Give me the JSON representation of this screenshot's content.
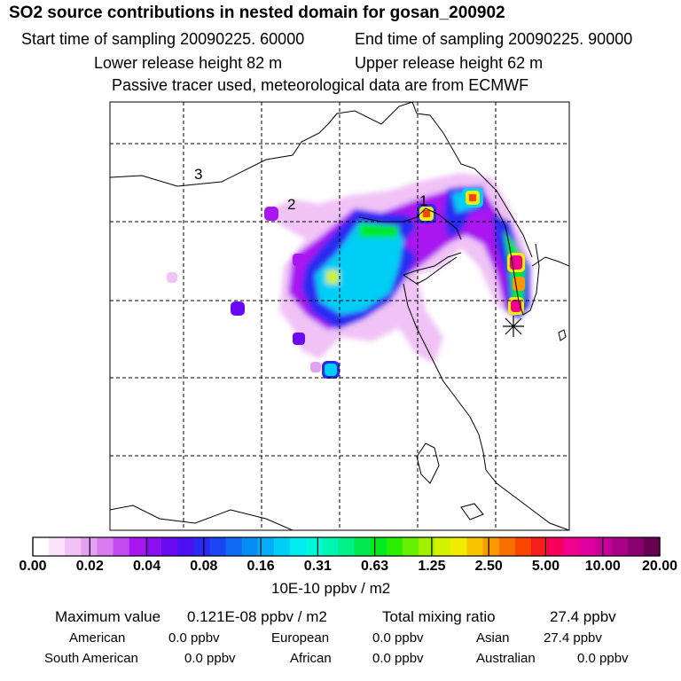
{
  "header": {
    "title": "SO2 source contributions in nested domain for gosan_200902",
    "start": "Start time of sampling 20090225. 60000",
    "end": "End time of sampling 20090225. 90000",
    "lower": "Lower release height   82 m",
    "upper": "Upper release height   62 m",
    "passive": "Passive tracer used, meteorological data are from ECMWF"
  },
  "map": {
    "labels": {
      "r1": "1",
      "r2": "2",
      "r3": "3"
    },
    "receptor_symbol": "asterisk"
  },
  "colorbar": {
    "ticks": [
      "0.00",
      "0.02",
      "0.04",
      "0.08",
      "0.16",
      "0.31",
      "0.63",
      "1.25",
      "2.50",
      "5.00",
      "10.00",
      "20.00"
    ],
    "units": "10E-10 ppbv / m2",
    "colors": [
      "#ffffff",
      "#f9e2fa",
      "#f0c2f6",
      "#e4a0f2",
      "#d67cf0",
      "#c24af0",
      "#a916f0",
      "#8a10f0",
      "#6a0af0",
      "#4a10f2",
      "#2a2af2",
      "#1a46f4",
      "#0f6af4",
      "#078cf6",
      "#04aef6",
      "#00cef6",
      "#00ecf2",
      "#00f8da",
      "#00f4b2",
      "#00f08a",
      "#00ea50",
      "#00ea20",
      "#2aee00",
      "#66f000",
      "#a2f200",
      "#d2f200",
      "#f2ec00",
      "#f8c400",
      "#f89a00",
      "#f87000",
      "#f84600",
      "#f81e1e",
      "#f8005a",
      "#f0008c",
      "#e000a2",
      "#c8009a",
      "#a80088",
      "#880070",
      "#680050"
    ]
  },
  "stats": {
    "max_label": "Maximum value",
    "max_value": "0.121E-08 ppbv / m2",
    "total_label": "Total mixing ratio",
    "total_value": "27.4 ppbv",
    "regions": [
      {
        "name": "American",
        "value": "0.0 ppbv"
      },
      {
        "name": "European",
        "value": "0.0 ppbv"
      },
      {
        "name": "Asian",
        "value": "27.4 ppbv"
      },
      {
        "name": "South American",
        "value": "0.0 ppbv"
      },
      {
        "name": "African",
        "value": "0.0 ppbv"
      },
      {
        "name": "Australian",
        "value": "0.0 ppbv"
      }
    ]
  }
}
